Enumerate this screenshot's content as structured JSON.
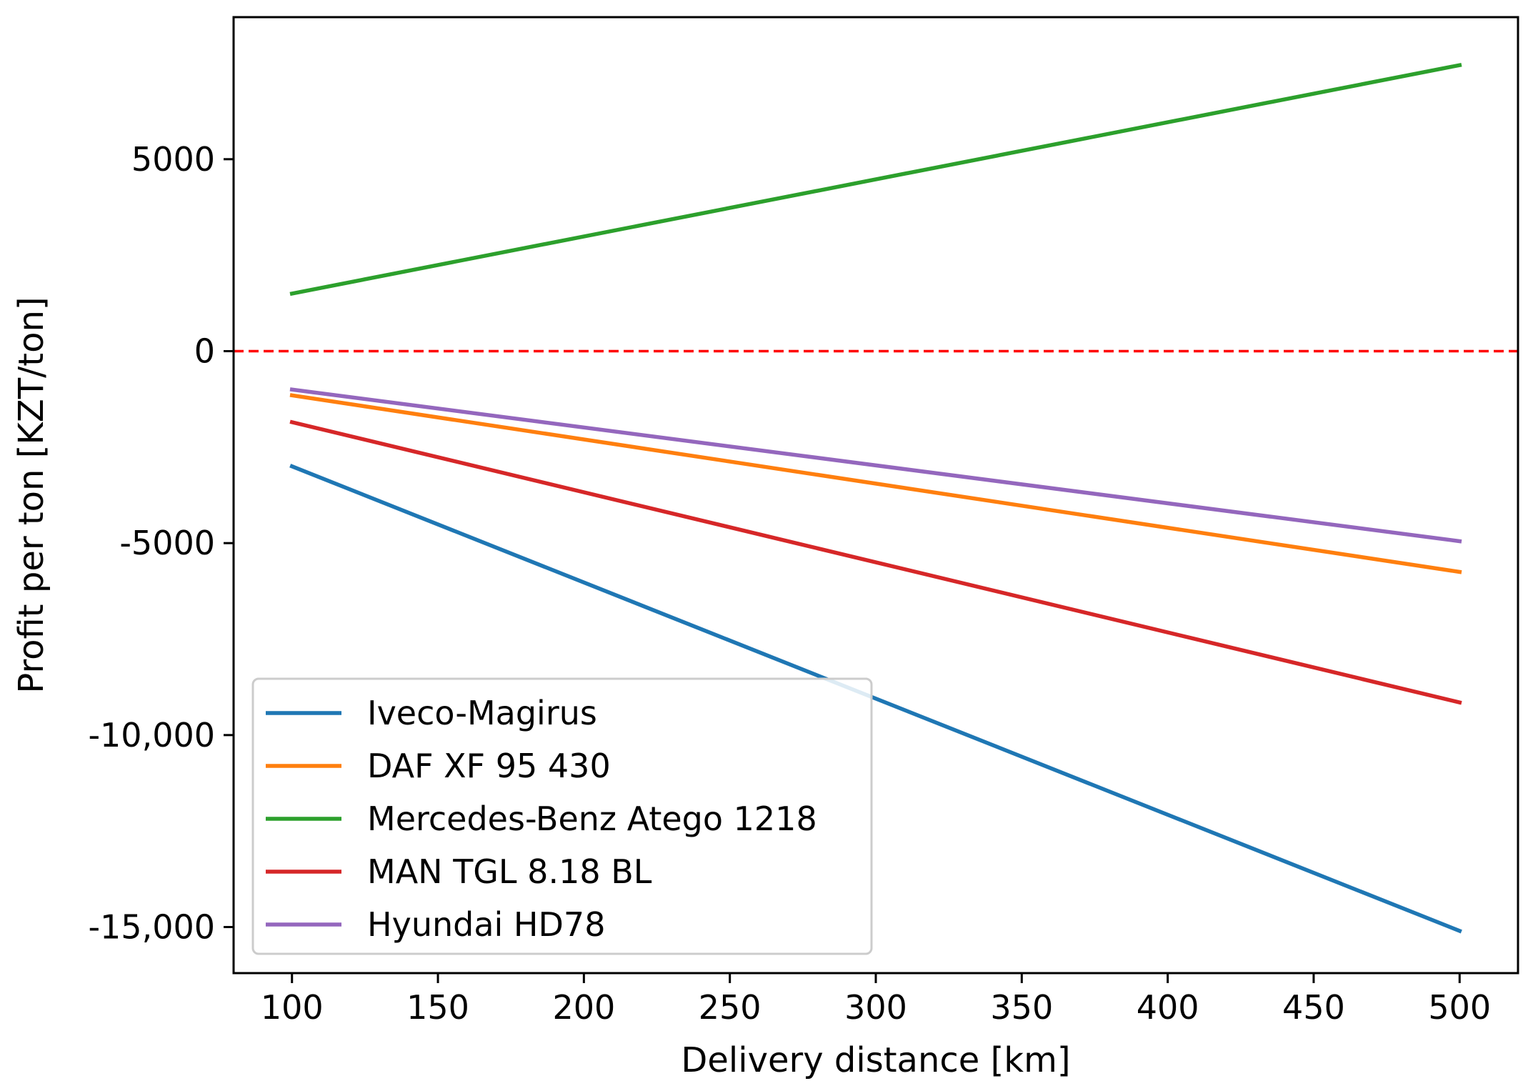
{
  "chart_data": {
    "type": "line",
    "title": "",
    "xlabel": "Delivery distance [km]",
    "ylabel": "Profit per ton [KZT/ton]",
    "xlim": [
      80,
      520
    ],
    "ylim": [
      -16200,
      8700
    ],
    "xticks": [
      100,
      150,
      200,
      250,
      300,
      350,
      400,
      450,
      500
    ],
    "xtick_labels": [
      "100",
      "150",
      "200",
      "250",
      "300",
      "350",
      "400",
      "450",
      "500"
    ],
    "yticks": [
      5000,
      0,
      -5000,
      -10000,
      -15000
    ],
    "ytick_labels": [
      "5000",
      "0",
      "-5000",
      "-10,000",
      "-15,000"
    ],
    "grid": false,
    "legend_position": "lower-left",
    "x": [
      100,
      500
    ],
    "series": [
      {
        "name": "Iveco-Magirus",
        "color": "#1f77b4",
        "values": [
          -3000,
          -15100
        ]
      },
      {
        "name": "DAF XF 95 430",
        "color": "#ff7f0e",
        "values": [
          -1150,
          -5750
        ]
      },
      {
        "name": "Mercedes-Benz Atego 1218",
        "color": "#2ca02c",
        "values": [
          1500,
          7450
        ]
      },
      {
        "name": "MAN TGL 8.18 BL",
        "color": "#d62728",
        "values": [
          -1850,
          -9150
        ]
      },
      {
        "name": "Hyundai HD78",
        "color": "#9467bd",
        "values": [
          -1000,
          -4950
        ]
      }
    ],
    "reference_line": {
      "y": 0,
      "color": "#ff0000",
      "style": "dashed"
    }
  }
}
